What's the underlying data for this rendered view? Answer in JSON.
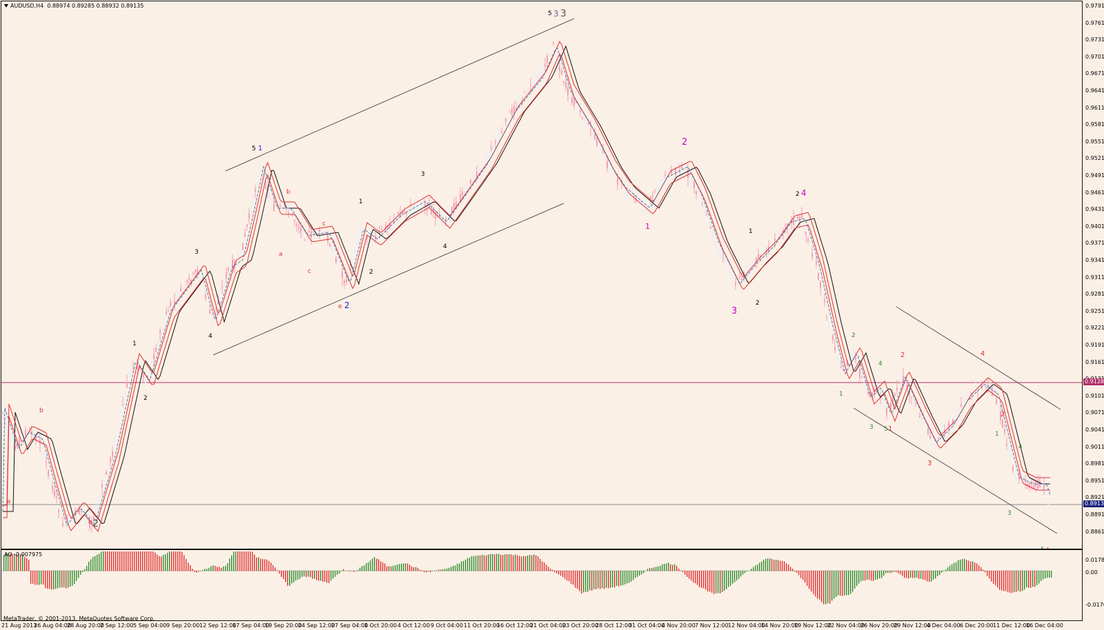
{
  "window": {
    "title": "AUDUSD,H4",
    "ohlc": "0.88974 0.89285 0.88932 0.89135"
  },
  "main_chart": {
    "symbol": "AUDUSD",
    "timeframe": "H4",
    "price_axis": [
      "0.97910",
      "0.97610",
      "0.97310",
      "0.97010",
      "0.96710",
      "0.96410",
      "0.96110",
      "0.95810",
      "0.95510",
      "0.95210",
      "0.94910",
      "0.94610",
      "0.94310",
      "0.94010",
      "0.93710",
      "0.93410",
      "0.93110",
      "0.92810",
      "0.92510",
      "0.92210",
      "0.91910",
      "0.91610",
      "0.91310",
      "0.91010",
      "0.90710",
      "0.90410",
      "0.90110",
      "0.89810",
      "0.89510",
      "0.89210",
      "0.88910",
      "0.88610"
    ],
    "horizontal_line_price": "0.91284",
    "current_price": "0.89135",
    "colors": {
      "background": "#fbf0e6",
      "horizontal_line": "#b0306a",
      "current_line": "#888888",
      "bull_candle": "#ffffff",
      "bear_candle": "#f4a0b4",
      "ma_black": "#111111",
      "ma_red": "#e03030",
      "ma_dotted": "#4a78b0",
      "ao_up": "#2e8b2e",
      "ao_down": "#e03030",
      "price_tag_bg": "#1a237e",
      "hline_tag_bg": "#b0306a"
    },
    "wave_labels": [
      {
        "text": "a",
        "color": "#e03030"
      },
      {
        "text": "b",
        "color": "#e03030"
      },
      {
        "text": "c",
        "color": "#e03030"
      },
      {
        "text": "2",
        "color": "#555555"
      },
      {
        "text": "1",
        "color": "#000000"
      },
      {
        "text": "2",
        "color": "#000000"
      },
      {
        "text": "3",
        "color": "#000000"
      },
      {
        "text": "4",
        "color": "#000000"
      },
      {
        "text": "5",
        "color": "#000000"
      },
      {
        "text": "1",
        "color": "#2222dd"
      },
      {
        "text": "a",
        "color": "#e03030"
      },
      {
        "text": "b",
        "color": "#e03030"
      },
      {
        "text": "c",
        "color": "#e03030"
      },
      {
        "text": "c",
        "color": "#e03030"
      },
      {
        "text": "e",
        "color": "#e03030"
      },
      {
        "text": "2",
        "color": "#2222dd"
      },
      {
        "text": "1",
        "color": "#000000"
      },
      {
        "text": "2",
        "color": "#000000"
      },
      {
        "text": "3",
        "color": "#000000"
      },
      {
        "text": "4",
        "color": "#000000"
      },
      {
        "text": "5",
        "color": "#000000"
      },
      {
        "text": "3",
        "color": "#6a6aa0"
      },
      {
        "text": "3",
        "color": "#555555"
      },
      {
        "text": "1",
        "color": "#cc00cc"
      },
      {
        "text": "2",
        "color": "#cc00cc"
      },
      {
        "text": "3",
        "color": "#cc00cc"
      },
      {
        "text": "1",
        "color": "#000000"
      },
      {
        "text": "2",
        "color": "#000000"
      },
      {
        "text": "2",
        "color": "#000000"
      },
      {
        "text": "4",
        "color": "#cc00cc"
      },
      {
        "text": "1",
        "color": "#2e8b2e"
      },
      {
        "text": "2",
        "color": "#2e8b2e"
      },
      {
        "text": "3",
        "color": "#2e8b2e"
      },
      {
        "text": "4",
        "color": "#2e8b2e"
      },
      {
        "text": "5",
        "color": "#2e8b2e"
      },
      {
        "text": "1",
        "color": "#e03030"
      },
      {
        "text": "2",
        "color": "#e03030"
      },
      {
        "text": "3",
        "color": "#e03030"
      },
      {
        "text": "4",
        "color": "#e03030"
      },
      {
        "text": "1",
        "color": "#2e8b2e"
      },
      {
        "text": "2",
        "color": "#e03030"
      },
      {
        "text": "3",
        "color": "#2e8b2e"
      },
      {
        "text": "4",
        "color": "#2e8b2e"
      },
      {
        "text": "5",
        "color": "#2e8b2e"
      },
      {
        "text": "5",
        "color": "#e03030"
      }
    ]
  },
  "ao_panel": {
    "title": "AO -0.007975",
    "axis": [
      "0.01785",
      "0.00",
      "-0.0176"
    ]
  },
  "time_axis": [
    "21 Aug 2013",
    "26 Aug 04:00",
    "28 Aug 20:00",
    "2 Sep 12:00",
    "5 Sep 04:00",
    "9 Sep 20:00",
    "12 Sep 12:00",
    "17 Sep 04:00",
    "19 Sep 20:00",
    "24 Sep 12:00",
    "27 Sep 04:00",
    "1 Oct 20:00",
    "4 Oct 12:00",
    "9 Oct 04:00",
    "11 Oct 20:00",
    "16 Oct 12:00",
    "21 Oct 04:00",
    "23 Oct 20:00",
    "28 Oct 12:00",
    "31 Oct 04:00",
    "4 Nov 20:00",
    "7 Nov 12:00",
    "12 Nov 04:00",
    "14 Nov 20:00",
    "19 Nov 12:00",
    "22 Nov 04:00",
    "26 Nov 20:00",
    "29 Nov 12:00",
    "4 Dec 04:00",
    "6 Dec 20:00",
    "11 Dec 12:00",
    "16 Dec 04:00"
  ],
  "footer": {
    "copyright": "MetaTrader, © 2001-2013, MetaQuotes Software Corp."
  }
}
